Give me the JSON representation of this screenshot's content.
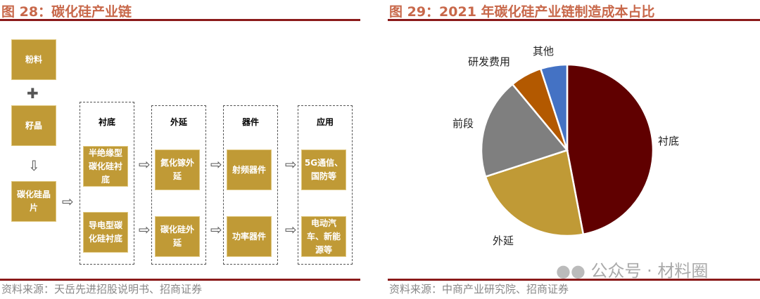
{
  "left": {
    "title": "图 28：碳化硅产业链",
    "raw": [
      "粉料",
      "籽晶",
      "碳化硅晶片"
    ],
    "groups": [
      {
        "head": "衬底",
        "items": [
          "半绝缘型碳化硅衬底",
          "导电型碳化硅衬底"
        ]
      },
      {
        "head": "外延",
        "items": [
          "氮化镓外延",
          "碳化硅外延"
        ]
      },
      {
        "head": "器件",
        "items": [
          "射频器件",
          "功率器件"
        ]
      },
      {
        "head": "应用",
        "items": [
          "5G通信、国防等",
          "电动汽车、新能源等"
        ]
      }
    ],
    "source": "资料来源：天岳先进招股说明书、招商证券"
  },
  "right": {
    "title": "图 29：2021 年碳化硅产业链制造成本占比",
    "source": "资料来源：中商产业研究院、招商证券",
    "watermark": "公众号 · 材料圈"
  },
  "chart_data": {
    "type": "pie",
    "title": "图 29：2021 年碳化硅产业链制造成本占比",
    "categories": [
      "衬底",
      "外延",
      "前段",
      "研发费用",
      "其他"
    ],
    "values": [
      47,
      23,
      19,
      6,
      5
    ],
    "unit": "%",
    "colors": [
      "#600000",
      "#c09a36",
      "#7f7f7f",
      "#b35900",
      "#4472c4"
    ],
    "start": "top, clockwise"
  }
}
